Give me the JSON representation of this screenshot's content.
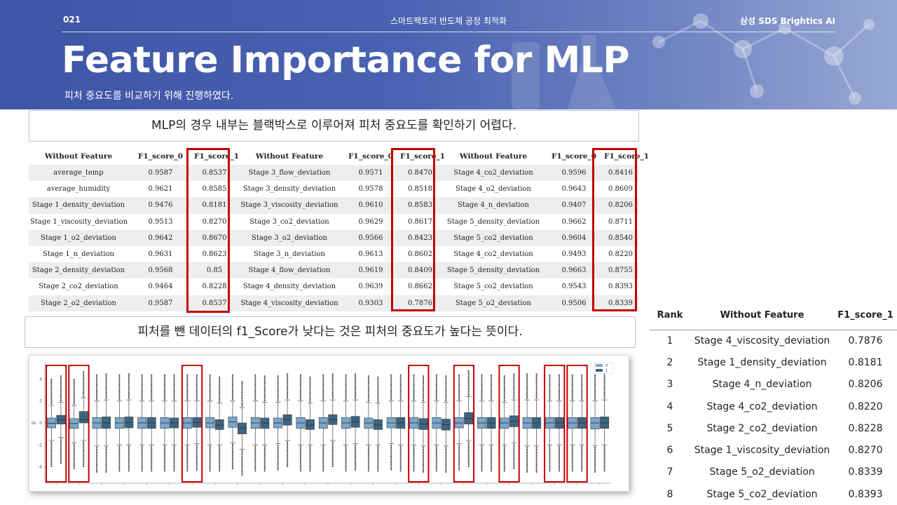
{
  "header": {
    "page_number": "021",
    "course": "스마트팩토리 반도체 공정 최적화",
    "brand": "삼성 SDS Brightics AI",
    "title": "Feature Importance for MLP",
    "subtitle": "피처 중요도를 비교하기 위해 진행하였다."
  },
  "callouts": {
    "top": "MLP의 경우 내부는 블랙박스로 이루어져 피처 중요도를 확인하기 어렵다.",
    "middle": "피처를 뺀 데이터의 f1_Score가 낮다는 것은 피처의 중요도가 높다는 뜻이다."
  },
  "feature_table": {
    "headers": [
      "Without Feature",
      "F1_score_0",
      "F1_score_1",
      "Without Feature",
      "F1_score_0",
      "F1_score_1",
      "Without Feature",
      "F1_score_0",
      "F1_score_1"
    ],
    "rows": [
      [
        "average_temp",
        "0.9587",
        "0.8537",
        "Stage 3_flow_deviation",
        "0.9571",
        "0.8470",
        "Stage 4_co2_deviation",
        "0.9596",
        "0.8416"
      ],
      [
        "average_humidity",
        "0.9621",
        "0.8585",
        "Stage 3_density_deviation",
        "0.9578",
        "0.8518",
        "Stage 4_o2_deviation",
        "0.9643",
        "0.8609"
      ],
      [
        "Stage 1_density_deviation",
        "0.9476",
        "0.8181",
        "Stage 3_viscosity_deviation",
        "0.9610",
        "0.8583",
        "Stage 4_n_deviation",
        "0.9407",
        "0.8206"
      ],
      [
        "Stage 1_viscosity_deviation",
        "0.9513",
        "0.8270",
        "Stage 3_co2_deviation",
        "0.9629",
        "0.8617",
        "Stage 5_density_deviation",
        "0.9662",
        "0.8711"
      ],
      [
        "Stage 1_o2_deviation",
        "0.9642",
        "0.8670",
        "Stage 3_o2_deviation",
        "0.9566",
        "0.8423",
        "Stage 5_co2_deviation",
        "0.9604",
        "0.8540"
      ],
      [
        "Stage 1_n_deviation",
        "0.9631",
        "0.8623",
        "Stage 3_n_deviation",
        "0.9613",
        "0.8602",
        "Stage 4_co2_deviation",
        "0.9493",
        "0.8220"
      ],
      [
        "Stage 2_density_deviation",
        "0.9568",
        "0.85",
        "Stage 4_flow_deviation",
        "0.9619",
        "0.8409",
        "Stage 5_density_deviation",
        "0.9663",
        "0.8755"
      ],
      [
        "Stage 2_co2_deviation",
        "0.9464",
        "0.8228",
        "Stage 4_density_deviation",
        "0.9639",
        "0.8662",
        "Stage 5_co2_deviation",
        "0.9543",
        "0.8393"
      ],
      [
        "Stage 2_o2_deviation",
        "0.9587",
        "0.8537",
        "Stage 4_viscosity_deviation",
        "0.9303",
        "0.7876",
        "Stage 5_o2_deviation",
        "0.9506",
        "0.8339"
      ]
    ]
  },
  "rank_table": {
    "headers": [
      "Rank",
      "Without Feature",
      "F1_score_1"
    ],
    "rows": [
      [
        "1",
        "Stage 4_viscosity_deviation",
        "0.7876"
      ],
      [
        "2",
        "Stage 1_density_deviation",
        "0.8181"
      ],
      [
        "3",
        "Stage 4_n_deviation",
        "0.8206"
      ],
      [
        "4",
        "Stage 4_co2_deviation",
        "0.8220"
      ],
      [
        "5",
        "Stage 2_co2_deviation",
        "0.8228"
      ],
      [
        "6",
        "Stage 1_viscosity_deviation",
        "0.8270"
      ],
      [
        "7",
        "Stage 5_o2_deviation",
        "0.8339"
      ],
      [
        "8",
        "Stage 5_co2_deviation",
        "0.8393"
      ]
    ]
  },
  "chart_data": {
    "type": "box",
    "title": "",
    "xlabel": "",
    "ylabel": "값",
    "ylim": [
      -5.5,
      5.5
    ],
    "y_ticks": [
      "4",
      "2",
      "0",
      "-2",
      "-4"
    ],
    "legend": [
      "0",
      "1"
    ],
    "legend_position": "top-right",
    "colors": [
      "#7ba6cc",
      "#3c6584"
    ],
    "highlighted_groups": [
      1,
      2,
      7,
      17,
      19,
      21,
      23,
      24
    ],
    "groups": [
      {
        "series0": {
          "q1": -0.45,
          "median": -0.02,
          "q3": 0.45,
          "lo": -1.6,
          "hi": 1.6
        },
        "series1": {
          "q1": -0.1,
          "median": 0.28,
          "q3": 0.7,
          "lo": -1.3,
          "hi": 1.9
        }
      },
      {
        "series0": {
          "q1": -0.5,
          "median": -0.05,
          "q3": 0.4,
          "lo": -1.8,
          "hi": 1.6
        },
        "series1": {
          "q1": 0.0,
          "median": 0.3,
          "q3": 1.05,
          "lo": -1.6,
          "hi": 2.3
        }
      },
      {
        "series0": {
          "q1": -0.5,
          "median": 0.0,
          "q3": 0.5,
          "lo": -2.1,
          "hi": 2.0
        },
        "series1": {
          "q1": -0.5,
          "median": 0.0,
          "q3": 0.55,
          "lo": -2.1,
          "hi": 2.1
        }
      },
      {
        "series0": {
          "q1": -0.5,
          "median": 0.0,
          "q3": 0.5,
          "lo": -2.0,
          "hi": 2.0
        },
        "series1": {
          "q1": -0.45,
          "median": 0.05,
          "q3": 0.55,
          "lo": -2.0,
          "hi": 2.1
        }
      },
      {
        "series0": {
          "q1": -0.5,
          "median": 0.0,
          "q3": 0.5,
          "lo": -2.0,
          "hi": 2.0
        },
        "series1": {
          "q1": -0.5,
          "median": 0.0,
          "q3": 0.5,
          "lo": -2.0,
          "hi": 2.0
        }
      },
      {
        "series0": {
          "q1": -0.5,
          "median": 0.0,
          "q3": 0.5,
          "lo": -2.0,
          "hi": 2.0
        },
        "series1": {
          "q1": -0.45,
          "median": 0.0,
          "q3": 0.45,
          "lo": -2.0,
          "hi": 2.0
        }
      },
      {
        "series0": {
          "q1": -0.5,
          "median": 0.0,
          "q3": 0.5,
          "lo": -2.0,
          "hi": 2.0
        },
        "series1": {
          "q1": -0.4,
          "median": 0.05,
          "q3": 0.5,
          "lo": -1.9,
          "hi": 2.0
        }
      },
      {
        "series0": {
          "q1": -0.45,
          "median": 0.0,
          "q3": 0.5,
          "lo": -2.0,
          "hi": 2.0
        },
        "series1": {
          "q1": -0.6,
          "median": -0.2,
          "q3": 0.3,
          "lo": -2.0,
          "hi": 1.8
        }
      },
      {
        "series0": {
          "q1": -0.4,
          "median": 0.1,
          "q3": 0.55,
          "lo": -1.8,
          "hi": 2.0
        },
        "series1": {
          "q1": -1.0,
          "median": -0.45,
          "q3": 0.0,
          "lo": -2.4,
          "hi": 1.4
        }
      },
      {
        "series0": {
          "q1": -0.5,
          "median": 0.0,
          "q3": 0.5,
          "lo": -2.0,
          "hi": 2.0
        },
        "series1": {
          "q1": -0.5,
          "median": 0.0,
          "q3": 0.45,
          "lo": -2.0,
          "hi": 1.9
        }
      },
      {
        "series0": {
          "q1": -0.45,
          "median": 0.0,
          "q3": 0.45,
          "lo": -1.9,
          "hi": 1.9
        },
        "series1": {
          "q1": -0.2,
          "median": 0.3,
          "q3": 0.75,
          "lo": -1.6,
          "hi": 2.1
        }
      },
      {
        "series0": {
          "q1": -0.5,
          "median": 0.0,
          "q3": 0.5,
          "lo": -2.0,
          "hi": 2.0
        },
        "series1": {
          "q1": -0.6,
          "median": -0.2,
          "q3": 0.3,
          "lo": -2.0,
          "hi": 1.8
        }
      },
      {
        "series0": {
          "q1": -0.5,
          "median": 0.0,
          "q3": 0.5,
          "lo": -2.0,
          "hi": 2.0
        },
        "series1": {
          "q1": -0.15,
          "median": 0.3,
          "q3": 0.75,
          "lo": -1.6,
          "hi": 2.1
        }
      },
      {
        "series0": {
          "q1": -0.5,
          "median": 0.0,
          "q3": 0.5,
          "lo": -2.0,
          "hi": 2.0
        },
        "series1": {
          "q1": -0.4,
          "median": 0.1,
          "q3": 0.6,
          "lo": -1.9,
          "hi": 2.1
        }
      },
      {
        "series0": {
          "q1": -0.5,
          "median": 0.0,
          "q3": 0.45,
          "lo": -2.0,
          "hi": 1.9
        },
        "series1": {
          "q1": -0.6,
          "median": -0.2,
          "q3": 0.3,
          "lo": -2.0,
          "hi": 1.8
        }
      },
      {
        "series0": {
          "q1": -0.45,
          "median": 0.0,
          "q3": 0.5,
          "lo": -1.9,
          "hi": 2.0
        },
        "series1": {
          "q1": -0.5,
          "median": 0.0,
          "q3": 0.5,
          "lo": -2.0,
          "hi": 2.0
        }
      },
      {
        "series0": {
          "q1": -0.5,
          "median": 0.0,
          "q3": 0.5,
          "lo": -2.0,
          "hi": 2.0
        },
        "series1": {
          "q1": -0.6,
          "median": -0.1,
          "q3": 0.4,
          "lo": -2.1,
          "hi": 1.9
        }
      },
      {
        "series0": {
          "q1": -0.5,
          "median": 0.0,
          "q3": 0.5,
          "lo": -2.0,
          "hi": 2.0
        },
        "series1": {
          "q1": -0.65,
          "median": -0.15,
          "q3": 0.35,
          "lo": -2.1,
          "hi": 1.9
        }
      },
      {
        "series0": {
          "q1": -0.45,
          "median": 0.0,
          "q3": 0.5,
          "lo": -1.9,
          "hi": 2.0
        },
        "series1": {
          "q1": -0.1,
          "median": 0.4,
          "q3": 0.95,
          "lo": -1.6,
          "hi": 2.4
        }
      },
      {
        "series0": {
          "q1": -0.5,
          "median": 0.0,
          "q3": 0.5,
          "lo": -2.0,
          "hi": 2.0
        },
        "series1": {
          "q1": -0.5,
          "median": 0.0,
          "q3": 0.5,
          "lo": -2.0,
          "hi": 2.0
        }
      },
      {
        "series0": {
          "q1": -0.5,
          "median": 0.0,
          "q3": 0.45,
          "lo": -2.0,
          "hi": 1.9
        },
        "series1": {
          "q1": -0.35,
          "median": 0.15,
          "q3": 0.65,
          "lo": -1.8,
          "hi": 2.1
        }
      },
      {
        "series0": {
          "q1": -0.5,
          "median": 0.0,
          "q3": 0.5,
          "lo": -2.1,
          "hi": 2.1
        },
        "series1": {
          "q1": -0.5,
          "median": 0.0,
          "q3": 0.5,
          "lo": -2.1,
          "hi": 2.1
        }
      },
      {
        "series0": {
          "q1": -0.5,
          "median": 0.0,
          "q3": 0.5,
          "lo": -2.0,
          "hi": 2.0
        },
        "series1": {
          "q1": -0.5,
          "median": 0.0,
          "q3": 0.5,
          "lo": -2.0,
          "hi": 2.0
        }
      },
      {
        "series0": {
          "q1": -0.5,
          "median": 0.0,
          "q3": 0.5,
          "lo": -2.0,
          "hi": 2.0
        },
        "series1": {
          "q1": -0.5,
          "median": 0.0,
          "q3": 0.5,
          "lo": -2.0,
          "hi": 2.0
        }
      },
      {
        "series0": {
          "q1": -0.55,
          "median": 0.0,
          "q3": 0.5,
          "lo": -2.1,
          "hi": 2.0
        },
        "series1": {
          "q1": -0.5,
          "median": 0.0,
          "q3": 0.55,
          "lo": -2.0,
          "hi": 2.1
        }
      }
    ]
  }
}
